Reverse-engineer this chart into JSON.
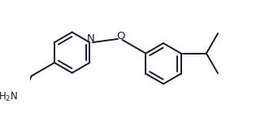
{
  "bg_color": "#ffffff",
  "line_color": "#1a1a2e",
  "line_width": 1.4,
  "font_size": 8.5,
  "figsize": [
    3.26,
    1.5
  ],
  "dpi": 100,
  "xlim": [
    -0.5,
    5.8
  ],
  "ylim": [
    -1.6,
    2.0
  ]
}
